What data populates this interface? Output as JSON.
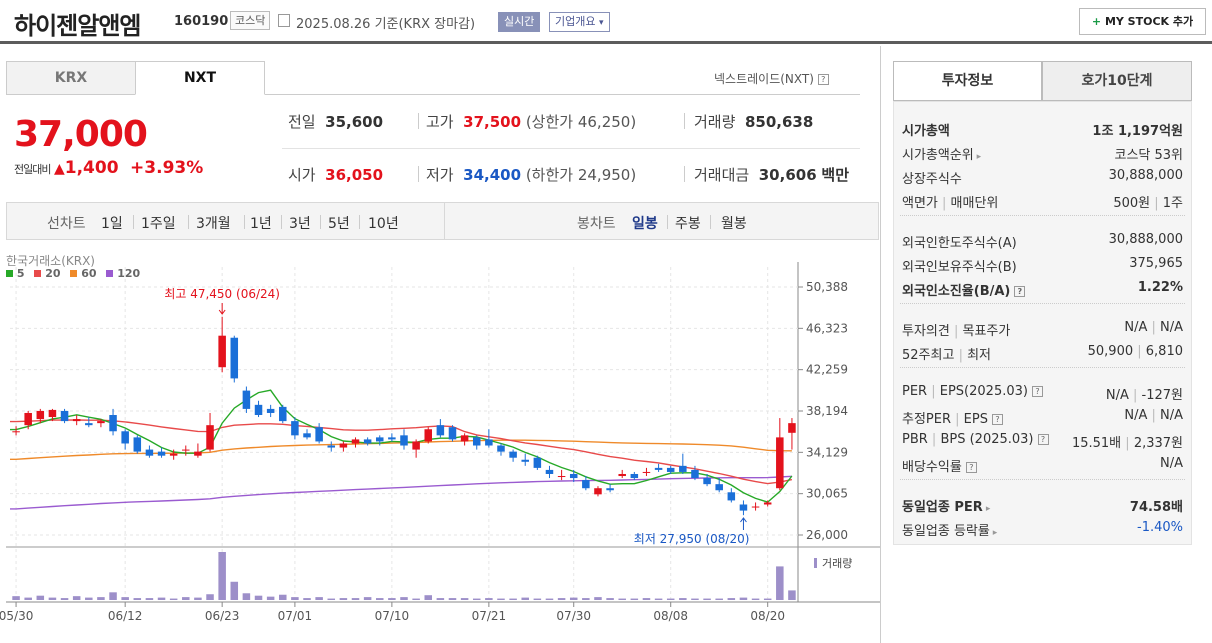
{
  "header": {
    "name": "하이젠알앤엠",
    "code": "160190",
    "market": "코스닥",
    "date_text": "2025.08.26  기준(KRX 장마감)",
    "realtime": "실시간",
    "corp_info": "기업개요",
    "corp_caret": "▾",
    "my_stock": "MY STOCK 추가",
    "plus": "+"
  },
  "tabs": {
    "krx": "KRX",
    "nxt": "NXT",
    "next_trade": "넥스트레이드(NXT)"
  },
  "price": {
    "current": "37,000",
    "change_label": "전일대비",
    "change_arrow": "▲",
    "change": "1,400",
    "change_pct": "+3.93%"
  },
  "summary": {
    "prev_label": "전일",
    "prev": "35,600",
    "high_label": "고가",
    "high": "37,500",
    "high_limit": "(상한가 46,250)",
    "volume_label": "거래량",
    "volume": "850,638",
    "open_label": "시가",
    "open": "36,050",
    "low_label": "저가",
    "low": "34,400",
    "low_limit": "(하한가 24,950)",
    "amount_label": "거래대금",
    "amount": "30,606",
    "amount_unit": "백만"
  },
  "ranges": {
    "label": "선차트",
    "items": [
      "1일",
      "1주일",
      "3개월",
      "1년",
      "3년",
      "5년",
      "10년"
    ],
    "candle_label": "봉차트",
    "candle_items": [
      "일봉",
      "주봉",
      "월봉"
    ],
    "active": "일봉"
  },
  "chart": {
    "source": "한국거래소(KRX)",
    "ma_legend": [
      {
        "label": "5",
        "color": "#27a927"
      },
      {
        "label": "20",
        "color": "#e84a4a"
      },
      {
        "label": "60",
        "color": "#ef8a2a"
      },
      {
        "label": "120",
        "color": "#9a5bd0"
      }
    ],
    "high_note": "최고 47,450 (06/24)",
    "low_note": "최저 27,950 (08/20)",
    "y_ticks": [
      "50,388",
      "46,323",
      "42,259",
      "38,194",
      "34,129",
      "30,065",
      "26,000"
    ],
    "x_ticks": [
      "05/30",
      "06/12",
      "06/23",
      "07/01",
      "07/10",
      "07/21",
      "07/30",
      "08/08",
      "08/20"
    ],
    "volume_label": "거래량",
    "up_color": "#e3121c",
    "down_color": "#1a6fd8"
  },
  "chart_data": {
    "type": "candlestick",
    "ylim": [
      26000,
      50388
    ],
    "candles": [
      [
        36100,
        36700,
        35800,
        36200
      ],
      [
        36800,
        38200,
        36400,
        38000
      ],
      [
        37400,
        38400,
        37000,
        38200
      ],
      [
        37600,
        38400,
        37200,
        38300
      ],
      [
        38200,
        38400,
        37000,
        37200
      ],
      [
        37200,
        37800,
        36800,
        37400
      ],
      [
        37000,
        37600,
        36600,
        36800
      ],
      [
        37000,
        37400,
        36600,
        37200
      ],
      [
        37800,
        38400,
        35800,
        36200
      ],
      [
        36200,
        36400,
        34400,
        35000
      ],
      [
        35600,
        35800,
        34000,
        34200
      ],
      [
        34400,
        34800,
        33600,
        33800
      ],
      [
        34200,
        34600,
        33600,
        33800
      ],
      [
        33800,
        34400,
        33400,
        34000
      ],
      [
        34400,
        34800,
        33800,
        34400
      ],
      [
        33800,
        35000,
        33600,
        34200
      ],
      [
        34400,
        38000,
        34200,
        36800
      ],
      [
        42500,
        47450,
        42000,
        45600
      ],
      [
        45400,
        45600,
        41000,
        41400
      ],
      [
        40200,
        40600,
        38000,
        38400
      ],
      [
        38800,
        39200,
        37600,
        37800
      ],
      [
        38400,
        38800,
        37600,
        38000
      ],
      [
        38600,
        38800,
        37000,
        37200
      ],
      [
        37200,
        37600,
        35400,
        35800
      ],
      [
        36000,
        36400,
        35400,
        35600
      ],
      [
        36600,
        37000,
        35000,
        35200
      ],
      [
        34800,
        35200,
        34200,
        34600
      ],
      [
        34600,
        35200,
        34200,
        35000
      ],
      [
        35000,
        35600,
        34600,
        35400
      ],
      [
        35400,
        35600,
        34800,
        35000
      ],
      [
        35600,
        35800,
        34800,
        35200
      ],
      [
        35600,
        36000,
        35200,
        35400
      ],
      [
        35800,
        36400,
        34400,
        34800
      ],
      [
        34400,
        35400,
        33600,
        35200
      ],
      [
        35200,
        36600,
        35000,
        36400
      ],
      [
        36800,
        37400,
        35600,
        35800
      ],
      [
        36600,
        36800,
        35200,
        35400
      ],
      [
        35200,
        36000,
        34800,
        35800
      ],
      [
        35600,
        35800,
        34400,
        34800
      ],
      [
        35400,
        36400,
        34600,
        34800
      ],
      [
        34800,
        35000,
        33800,
        34200
      ],
      [
        34200,
        34400,
        33200,
        33600
      ],
      [
        33400,
        34000,
        32800,
        33200
      ],
      [
        33600,
        33800,
        32400,
        32600
      ],
      [
        32400,
        32800,
        31600,
        32000
      ],
      [
        31800,
        32400,
        31400,
        31800
      ],
      [
        32000,
        32400,
        31200,
        31600
      ],
      [
        31400,
        31800,
        30400,
        30600
      ],
      [
        30000,
        30800,
        29800,
        30600
      ],
      [
        30600,
        31000,
        30200,
        30400
      ],
      [
        31800,
        32400,
        31600,
        32000
      ],
      [
        32000,
        32200,
        31400,
        31600
      ],
      [
        32200,
        32600,
        31800,
        32200
      ],
      [
        32600,
        33000,
        32200,
        32400
      ],
      [
        32600,
        32800,
        32000,
        32200
      ],
      [
        32800,
        34000,
        32000,
        32200
      ],
      [
        32400,
        32800,
        31400,
        31600
      ],
      [
        31600,
        32000,
        30800,
        31000
      ],
      [
        31000,
        31600,
        30200,
        30400
      ],
      [
        30200,
        30600,
        29200,
        29400
      ],
      [
        29000,
        29400,
        27950,
        28400
      ],
      [
        28800,
        29200,
        28400,
        28800
      ],
      [
        29000,
        29400,
        28800,
        29200
      ],
      [
        30600,
        37500,
        30400,
        35600
      ],
      [
        36050,
        37500,
        34400,
        37000
      ]
    ],
    "volumes": [
      8,
      5,
      9,
      5,
      4,
      8,
      5,
      6,
      16,
      6,
      4,
      4,
      5,
      3,
      6,
      5,
      12,
      100,
      38,
      14,
      9,
      7,
      11,
      6,
      4,
      6,
      3,
      4,
      4,
      6,
      4,
      4,
      6,
      3,
      10,
      4,
      4,
      4,
      3,
      4,
      3,
      3,
      5,
      3,
      3,
      4,
      5,
      4,
      6,
      4,
      3,
      3,
      4,
      3,
      3,
      4,
      3,
      3,
      3,
      4,
      5,
      3,
      3,
      70,
      20
    ],
    "volume_unit": "relative (0-100)"
  },
  "investment": {
    "tab1": "투자정보",
    "tab2": "호가10단계",
    "rows": [
      {
        "label": "시가총액",
        "value": "1조 1,197억원",
        "bold": true
      },
      {
        "label": "시가총액순위",
        "value": "코스닥 53위",
        "arrow": true
      },
      {
        "label": "상장주식수",
        "value": "30,888,000"
      },
      {
        "label": "액면가 | 매매단위",
        "value": "500원 | 1주"
      },
      {
        "label": "외국인한도주식수(A)",
        "value": "30,888,000"
      },
      {
        "label": "외국인보유주식수(B)",
        "value": "375,965"
      },
      {
        "label": "외국인소진율(B/A)",
        "value": "1.22%",
        "bold": true,
        "q": true
      },
      {
        "label": "투자의견 | 목표주가",
        "value": "N/A | N/A"
      },
      {
        "label": "52주최고 | 최저",
        "value": "50,900 | 6,810"
      },
      {
        "label": "PER | EPS(2025.03)",
        "value": "N/A | -127원",
        "q": true
      },
      {
        "label": "추정PER | EPS",
        "value": "N/A | N/A",
        "q": true
      },
      {
        "label": "PBR | BPS (2025.03)",
        "value": "15.51배 | 2,337원",
        "q": true
      },
      {
        "label": "배당수익률",
        "value": "N/A",
        "q": true
      },
      {
        "label": "동일업종 PER",
        "value": "74.58배",
        "bold": true,
        "arrow": true
      },
      {
        "label": "동일업종 등락률",
        "value": "-1.40%",
        "arrow": true,
        "blue": true
      }
    ]
  }
}
